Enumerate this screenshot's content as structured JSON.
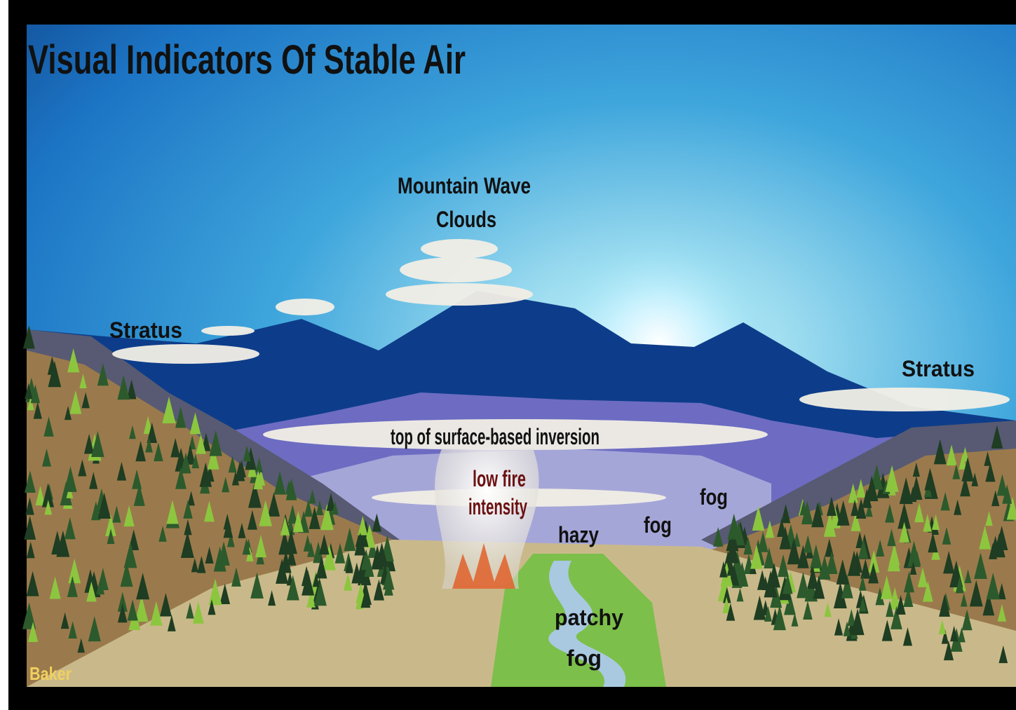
{
  "title": "Visual Indicators Of Stable Air",
  "labels": [
    {
      "lines": [
        "Mountain Wave",
        "Clouds"
      ]
    },
    {
      "lines": [
        "Stratus"
      ]
    },
    {
      "lines": [
        "Stratus"
      ]
    },
    {
      "lines": [
        "top of surface-based inversion"
      ]
    },
    {
      "lines": [
        "low fire",
        "intensity"
      ]
    },
    {
      "lines": [
        "hazy"
      ]
    },
    {
      "lines": [
        "fog"
      ]
    },
    {
      "lines": [
        "fog"
      ]
    },
    {
      "lines": [
        "patchy",
        "fog"
      ]
    }
  ],
  "credit": "Baker"
}
